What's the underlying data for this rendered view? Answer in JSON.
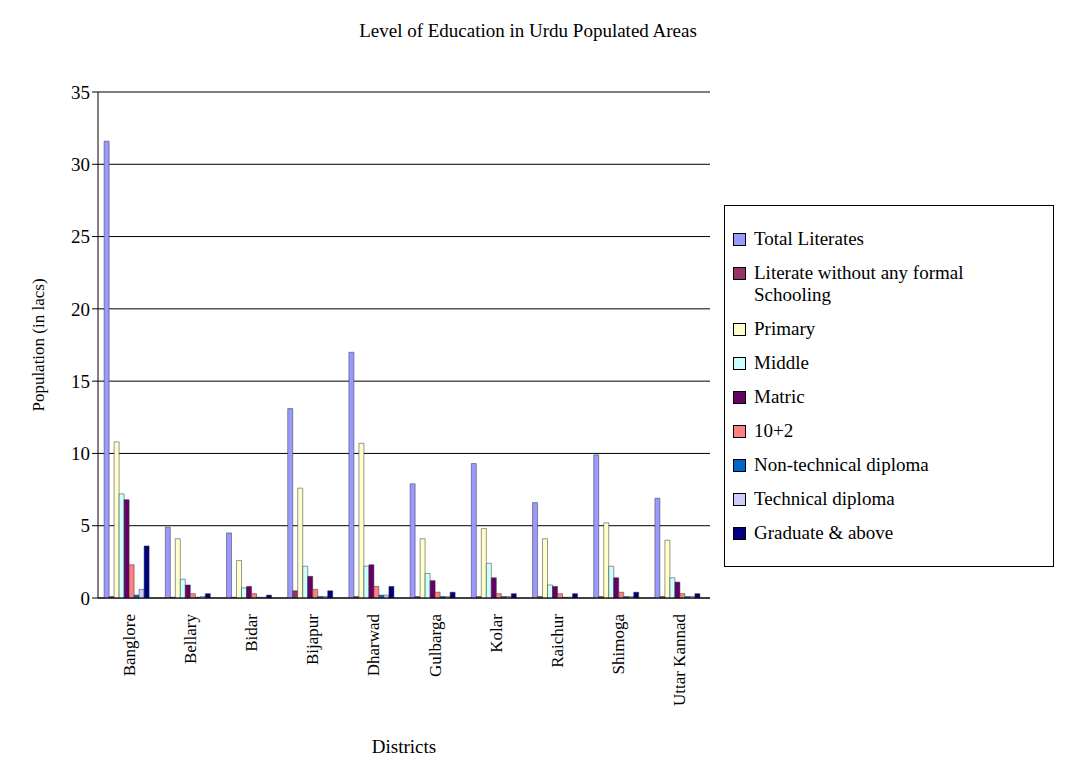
{
  "chart_data": {
    "type": "bar",
    "title": "Level of Education in Urdu Populated Areas",
    "x_label": "Districts",
    "y_label": "Population (in lacs)",
    "categories": [
      "Banglore",
      "Bellary",
      "Bidar",
      "Bijapur",
      "Dharwad",
      "Gulbarga",
      "Kolar",
      "Raichur",
      "Shimoga",
      "Uttar Kannad"
    ],
    "series": [
      {
        "name": "Total Literates",
        "color": "#9999ff",
        "values": [
          31.6,
          4.9,
          4.5,
          13.1,
          17.0,
          7.9,
          9.3,
          6.6,
          9.9,
          6.9
        ]
      },
      {
        "name": "Literate without any formal Schooling",
        "color": "#993366",
        "values": [
          0.1,
          0.05,
          0.05,
          0.5,
          0.1,
          0.1,
          0.1,
          0.1,
          0.1,
          0.1
        ]
      },
      {
        "name": "Primary",
        "color": "#ffffcc",
        "values": [
          10.8,
          4.1,
          2.6,
          7.6,
          10.7,
          4.1,
          4.8,
          4.1,
          5.2,
          4.0
        ]
      },
      {
        "name": "Middle",
        "color": "#ccffff",
        "values": [
          7.2,
          1.3,
          0.7,
          2.2,
          2.2,
          1.7,
          2.4,
          0.9,
          2.2,
          1.4
        ]
      },
      {
        "name": "Matric",
        "color": "#660066",
        "values": [
          6.8,
          0.9,
          0.8,
          1.5,
          2.3,
          1.2,
          1.4,
          0.8,
          1.4,
          1.1
        ]
      },
      {
        "name": "10+2",
        "color": "#ff8080",
        "values": [
          2.3,
          0.3,
          0.3,
          0.6,
          0.8,
          0.4,
          0.3,
          0.3,
          0.4,
          0.3
        ]
      },
      {
        "name": "Non-technical diploma",
        "color": "#0066cc",
        "values": [
          0.2,
          0.05,
          0.05,
          0.1,
          0.2,
          0.1,
          0.1,
          0.05,
          0.1,
          0.1
        ]
      },
      {
        "name": "Technical diploma",
        "color": "#ccccff",
        "values": [
          0.6,
          0.1,
          0.05,
          0.1,
          0.2,
          0.1,
          0.1,
          0.05,
          0.1,
          0.1
        ]
      },
      {
        "name": "Graduate & above",
        "color": "#000080",
        "values": [
          3.6,
          0.3,
          0.2,
          0.5,
          0.8,
          0.4,
          0.3,
          0.3,
          0.4,
          0.3
        ]
      }
    ],
    "ylim": [
      0,
      35
    ],
    "yticks": [
      0,
      5,
      10,
      15,
      20,
      25,
      30,
      35
    ],
    "grid": true,
    "legend": "right"
  }
}
